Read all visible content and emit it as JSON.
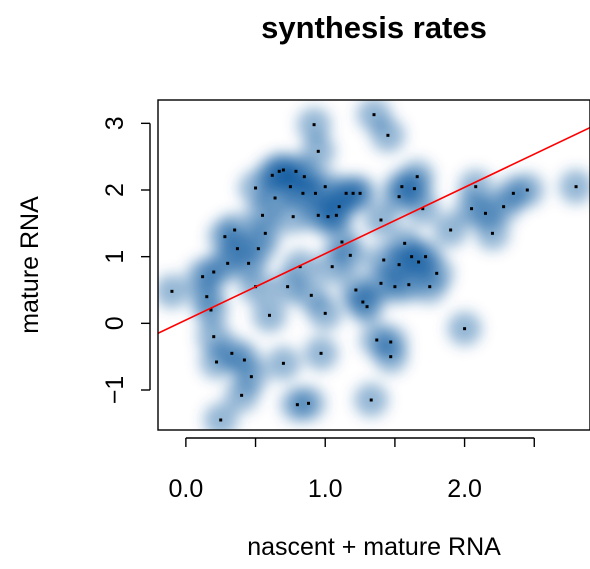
{
  "chart_data": {
    "type": "scatter",
    "title": "synthesis rates",
    "xlabel": "nascent + mature RNA",
    "ylabel": "mature RNA",
    "xlim": [
      -0.2,
      2.9
    ],
    "ylim": [
      -1.6,
      3.35
    ],
    "x_ticks": [
      0.0,
      0.5,
      1.0,
      1.5,
      2.0,
      2.5
    ],
    "x_tick_labels": [
      "0.0",
      "",
      "1.0",
      "",
      "2.0",
      ""
    ],
    "y_ticks": [
      -1,
      0,
      1,
      2,
      3
    ],
    "y_tick_labels": [
      "−1",
      "0",
      "1",
      "2",
      "3"
    ],
    "smoothed_density": true,
    "density_color": "#08519c",
    "point_color": "#000000",
    "regression_line": {
      "color": "#ff0000",
      "intercept": 0.05,
      "slope": 0.995
    },
    "points": [
      [
        -0.1,
        0.48
      ],
      [
        0.12,
        0.7
      ],
      [
        0.15,
        0.4
      ],
      [
        0.18,
        0.2
      ],
      [
        0.2,
        0.77
      ],
      [
        0.2,
        -0.2
      ],
      [
        0.22,
        -0.58
      ],
      [
        0.25,
        -1.45
      ],
      [
        0.28,
        1.3
      ],
      [
        0.3,
        0.9
      ],
      [
        0.33,
        -0.45
      ],
      [
        0.35,
        1.4
      ],
      [
        0.37,
        1.12
      ],
      [
        0.4,
        -1.08
      ],
      [
        0.42,
        -0.55
      ],
      [
        0.45,
        0.9
      ],
      [
        0.47,
        -0.8
      ],
      [
        0.5,
        2.03
      ],
      [
        0.5,
        0.55
      ],
      [
        0.52,
        1.12
      ],
      [
        0.55,
        1.62
      ],
      [
        0.57,
        1.35
      ],
      [
        0.6,
        0.12
      ],
      [
        0.62,
        2.22
      ],
      [
        0.64,
        1.88
      ],
      [
        0.67,
        2.28
      ],
      [
        0.7,
        2.3
      ],
      [
        0.7,
        -0.6
      ],
      [
        0.73,
        0.55
      ],
      [
        0.75,
        2.05
      ],
      [
        0.77,
        1.6
      ],
      [
        0.79,
        2.28
      ],
      [
        0.8,
        -1.22
      ],
      [
        0.82,
        0.85
      ],
      [
        0.84,
        1.95
      ],
      [
        0.85,
        2.2
      ],
      [
        0.88,
        -1.2
      ],
      [
        0.9,
        0.42
      ],
      [
        0.92,
        2.98
      ],
      [
        0.93,
        1.95
      ],
      [
        0.95,
        2.58
      ],
      [
        0.95,
        1.62
      ],
      [
        0.97,
        -0.45
      ],
      [
        1.0,
        2.05
      ],
      [
        1.0,
        0.15
      ],
      [
        1.02,
        1.6
      ],
      [
        1.05,
        0.85
      ],
      [
        1.08,
        1.62
      ],
      [
        1.1,
        1.75
      ],
      [
        1.12,
        1.22
      ],
      [
        1.15,
        1.95
      ],
      [
        1.18,
        1.02
      ],
      [
        1.2,
        1.95
      ],
      [
        1.22,
        0.5
      ],
      [
        1.25,
        1.95
      ],
      [
        1.27,
        0.32
      ],
      [
        1.3,
        0.25
      ],
      [
        1.33,
        -1.15
      ],
      [
        1.35,
        3.13
      ],
      [
        1.37,
        -0.25
      ],
      [
        1.4,
        1.55
      ],
      [
        1.4,
        0.6
      ],
      [
        1.42,
        0.95
      ],
      [
        1.45,
        2.82
      ],
      [
        1.47,
        -0.28
      ],
      [
        1.47,
        -0.5
      ],
      [
        1.5,
        0.55
      ],
      [
        1.53,
        1.9
      ],
      [
        1.53,
        0.88
      ],
      [
        1.55,
        2.05
      ],
      [
        1.57,
        1.2
      ],
      [
        1.6,
        0.58
      ],
      [
        1.62,
        1.0
      ],
      [
        1.64,
        2.02
      ],
      [
        1.66,
        2.2
      ],
      [
        1.67,
        0.92
      ],
      [
        1.7,
        1.72
      ],
      [
        1.72,
        1.0
      ],
      [
        1.75,
        0.55
      ],
      [
        1.8,
        0.75
      ],
      [
        1.9,
        1.4
      ],
      [
        2.0,
        -0.08
      ],
      [
        2.05,
        1.72
      ],
      [
        2.08,
        2.05
      ],
      [
        2.15,
        1.65
      ],
      [
        2.2,
        1.35
      ],
      [
        2.28,
        1.75
      ],
      [
        2.35,
        1.95
      ],
      [
        2.45,
        2.0
      ],
      [
        2.8,
        2.05
      ]
    ]
  }
}
